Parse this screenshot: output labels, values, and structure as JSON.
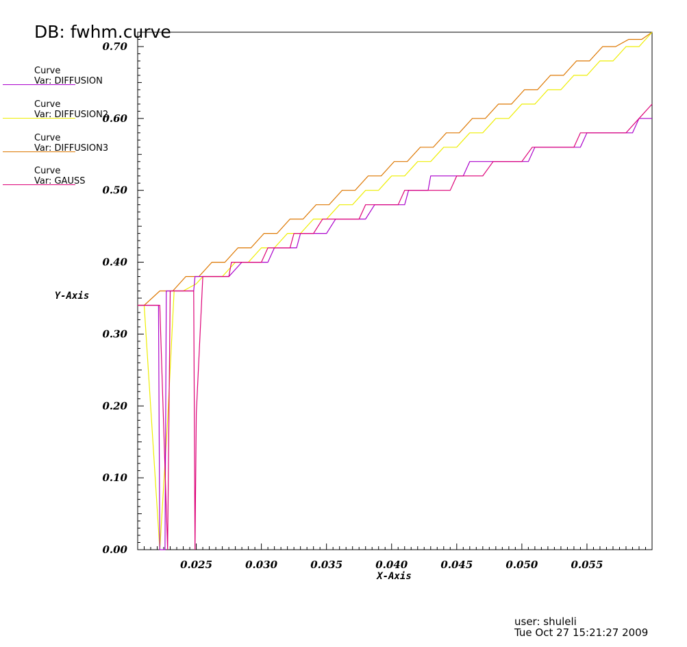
{
  "title": "DB: fwhm.curve",
  "footer": {
    "user": "user: shuleli",
    "timestamp": "Tue Oct 27 15:21:27 2009"
  },
  "chart_data": {
    "type": "line",
    "xlabel": "X-Axis",
    "ylabel": "Y-Axis",
    "xlim": [
      0.0205,
      0.06
    ],
    "ylim": [
      0.0,
      0.72
    ],
    "x_ticks": [
      "0.025",
      "0.030",
      "0.035",
      "0.040",
      "0.045",
      "0.050",
      "0.055"
    ],
    "y_ticks": [
      "0.00",
      "0.10",
      "0.20",
      "0.30",
      "0.40",
      "0.50",
      "0.60",
      "0.70"
    ],
    "grid": false,
    "legend_position": "left",
    "series": [
      {
        "legend_title": "Curve",
        "name": "Var: DIFFUSION",
        "color": "#aa00cc",
        "x": [
          0.0205,
          0.021,
          0.0211,
          0.0221,
          0.0222,
          0.0225,
          0.0226,
          0.0227,
          0.023,
          0.0237,
          0.024,
          0.0245,
          0.0248,
          0.0249,
          0.0254,
          0.0255,
          0.0265,
          0.0275,
          0.0285,
          0.0295,
          0.03,
          0.0305,
          0.031,
          0.0315,
          0.032,
          0.0325,
          0.0327,
          0.033,
          0.034,
          0.0345,
          0.035,
          0.0357,
          0.036,
          0.0365,
          0.037,
          0.0375,
          0.038,
          0.0387,
          0.039,
          0.04,
          0.0405,
          0.041,
          0.0413,
          0.042,
          0.0428,
          0.043,
          0.044,
          0.0445,
          0.045,
          0.0455,
          0.046,
          0.047,
          0.0475,
          0.0479,
          0.048,
          0.049,
          0.05,
          0.0505,
          0.051,
          0.0513,
          0.052,
          0.053,
          0.0535,
          0.054,
          0.0545,
          0.055,
          0.056,
          0.0567,
          0.057,
          0.058,
          0.0585,
          0.059,
          0.0595,
          0.06
        ],
        "y": [
          0.34,
          0.34,
          0.34,
          0.34,
          0.0,
          0.0,
          0.0,
          0.36,
          0.36,
          0.36,
          0.36,
          0.36,
          0.36,
          0.38,
          0.38,
          0.38,
          0.38,
          0.38,
          0.4,
          0.4,
          0.4,
          0.4,
          0.42,
          0.42,
          0.42,
          0.42,
          0.42,
          0.44,
          0.44,
          0.44,
          0.44,
          0.46,
          0.46,
          0.46,
          0.46,
          0.46,
          0.46,
          0.48,
          0.48,
          0.48,
          0.48,
          0.48,
          0.5,
          0.5,
          0.5,
          0.52,
          0.52,
          0.52,
          0.52,
          0.52,
          0.54,
          0.54,
          0.54,
          0.54,
          0.54,
          0.54,
          0.54,
          0.54,
          0.56,
          0.56,
          0.56,
          0.56,
          0.56,
          0.56,
          0.56,
          0.58,
          0.58,
          0.58,
          0.58,
          0.58,
          0.58,
          0.6,
          0.6,
          0.6
        ]
      },
      {
        "legend_title": "Curve",
        "name": "Var: DIFFUSION2",
        "color": "#eeee00",
        "x": [
          0.0205,
          0.021,
          0.0216,
          0.0222,
          0.0228,
          0.0233,
          0.024,
          0.025,
          0.0255,
          0.026,
          0.027,
          0.0275,
          0.028,
          0.029,
          0.0295,
          0.03,
          0.031,
          0.0315,
          0.032,
          0.033,
          0.0335,
          0.034,
          0.035,
          0.0355,
          0.036,
          0.037,
          0.0375,
          0.038,
          0.039,
          0.0395,
          0.04,
          0.041,
          0.0415,
          0.042,
          0.043,
          0.0435,
          0.044,
          0.045,
          0.0455,
          0.046,
          0.047,
          0.0475,
          0.048,
          0.049,
          0.0495,
          0.05,
          0.051,
          0.0515,
          0.052,
          0.053,
          0.0535,
          0.054,
          0.055,
          0.0555,
          0.056,
          0.057,
          0.0575,
          0.058,
          0.059,
          0.0595,
          0.06
        ],
        "y": [
          0.34,
          0.34,
          0.17,
          0.0,
          0.18,
          0.36,
          0.36,
          0.37,
          0.38,
          0.38,
          0.38,
          0.39,
          0.4,
          0.4,
          0.41,
          0.42,
          0.42,
          0.43,
          0.44,
          0.44,
          0.45,
          0.46,
          0.46,
          0.47,
          0.48,
          0.48,
          0.49,
          0.5,
          0.5,
          0.51,
          0.52,
          0.52,
          0.53,
          0.54,
          0.54,
          0.55,
          0.56,
          0.56,
          0.57,
          0.58,
          0.58,
          0.59,
          0.6,
          0.6,
          0.61,
          0.62,
          0.62,
          0.63,
          0.64,
          0.64,
          0.65,
          0.66,
          0.66,
          0.67,
          0.68,
          0.68,
          0.69,
          0.7,
          0.7,
          0.71,
          0.72
        ]
      },
      {
        "legend_title": "Curve",
        "name": "Var: DIFFUSION3",
        "color": "#dd7700",
        "x": [
          0.0205,
          0.021,
          0.0222,
          0.0232,
          0.0242,
          0.0252,
          0.0262,
          0.0272,
          0.0282,
          0.0292,
          0.0302,
          0.0312,
          0.0322,
          0.0332,
          0.0342,
          0.0352,
          0.0362,
          0.0372,
          0.0382,
          0.0392,
          0.0402,
          0.0412,
          0.0422,
          0.0432,
          0.0442,
          0.0452,
          0.0462,
          0.0472,
          0.0482,
          0.0492,
          0.0502,
          0.0512,
          0.0522,
          0.0532,
          0.0542,
          0.0552,
          0.0562,
          0.0572,
          0.0582,
          0.0592,
          0.06
        ],
        "y": [
          0.34,
          0.34,
          0.36,
          0.36,
          0.38,
          0.38,
          0.4,
          0.4,
          0.42,
          0.42,
          0.44,
          0.44,
          0.46,
          0.46,
          0.48,
          0.48,
          0.5,
          0.5,
          0.52,
          0.52,
          0.54,
          0.54,
          0.56,
          0.56,
          0.58,
          0.58,
          0.6,
          0.6,
          0.62,
          0.62,
          0.64,
          0.64,
          0.66,
          0.66,
          0.68,
          0.68,
          0.7,
          0.7,
          0.71,
          0.71,
          0.72
        ]
      },
      {
        "legend_title": "Curve",
        "name": "Var: GAUSS",
        "color": "#dd0077",
        "x": [
          0.0205,
          0.021,
          0.0217,
          0.0222,
          0.0228,
          0.0229,
          0.023,
          0.0247,
          0.0248,
          0.0249,
          0.025,
          0.0255,
          0.0262,
          0.0265,
          0.0275,
          0.0277,
          0.0285,
          0.0295,
          0.03,
          0.0305,
          0.031,
          0.0315,
          0.0322,
          0.0325,
          0.033,
          0.034,
          0.0347,
          0.035,
          0.036,
          0.0365,
          0.037,
          0.0375,
          0.038,
          0.0385,
          0.039,
          0.04,
          0.0405,
          0.041,
          0.0415,
          0.042,
          0.043,
          0.0445,
          0.045,
          0.0455,
          0.046,
          0.047,
          0.0478,
          0.048,
          0.049,
          0.05,
          0.0508,
          0.051,
          0.052,
          0.053,
          0.054,
          0.0545,
          0.055,
          0.056,
          0.0565,
          0.057,
          0.058,
          0.059,
          0.06
        ],
        "y": [
          0.34,
          0.34,
          0.34,
          0.34,
          0.0,
          0.18,
          0.36,
          0.36,
          0.36,
          0.0,
          0.19,
          0.38,
          0.38,
          0.38,
          0.38,
          0.4,
          0.4,
          0.4,
          0.4,
          0.42,
          0.42,
          0.42,
          0.42,
          0.44,
          0.44,
          0.44,
          0.46,
          0.46,
          0.46,
          0.46,
          0.46,
          0.46,
          0.48,
          0.48,
          0.48,
          0.48,
          0.48,
          0.5,
          0.5,
          0.5,
          0.5,
          0.5,
          0.52,
          0.52,
          0.52,
          0.52,
          0.54,
          0.54,
          0.54,
          0.54,
          0.56,
          0.56,
          0.56,
          0.56,
          0.56,
          0.58,
          0.58,
          0.58,
          0.58,
          0.58,
          0.58,
          0.6,
          0.62
        ]
      }
    ]
  }
}
